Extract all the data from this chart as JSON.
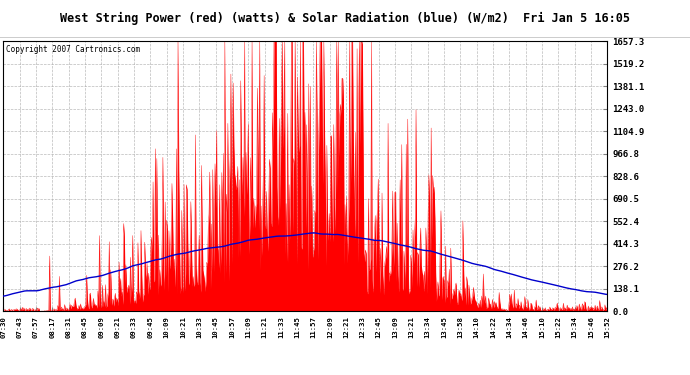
{
  "title": "West String Power (red) (watts) & Solar Radiation (blue) (W/m2)  Fri Jan 5 16:05",
  "copyright": "Copyright 2007 Cartronics.com",
  "yticks": [
    0.0,
    138.1,
    276.2,
    414.3,
    552.4,
    690.5,
    828.6,
    966.8,
    1104.9,
    1243.0,
    1381.1,
    1519.2,
    1657.3
  ],
  "ymax": 1657.3,
  "xtick_labels": [
    "07:30",
    "07:43",
    "07:57",
    "08:17",
    "08:31",
    "08:45",
    "09:09",
    "09:21",
    "09:33",
    "09:45",
    "10:09",
    "10:21",
    "10:33",
    "10:45",
    "10:57",
    "11:09",
    "11:21",
    "11:33",
    "11:45",
    "11:57",
    "12:09",
    "12:21",
    "12:33",
    "12:45",
    "13:09",
    "13:21",
    "13:34",
    "13:45",
    "13:58",
    "14:10",
    "14:22",
    "14:34",
    "14:46",
    "15:10",
    "15:22",
    "15:34",
    "15:46",
    "15:52"
  ],
  "plot_bg_color": "#ffffff",
  "fig_bg_color": "#ffffff",
  "title_color": "#000000",
  "red_color": "#ff0000",
  "blue_color": "#0000cc",
  "grid_color": "#aaaaaa",
  "copyright_color": "#000000"
}
